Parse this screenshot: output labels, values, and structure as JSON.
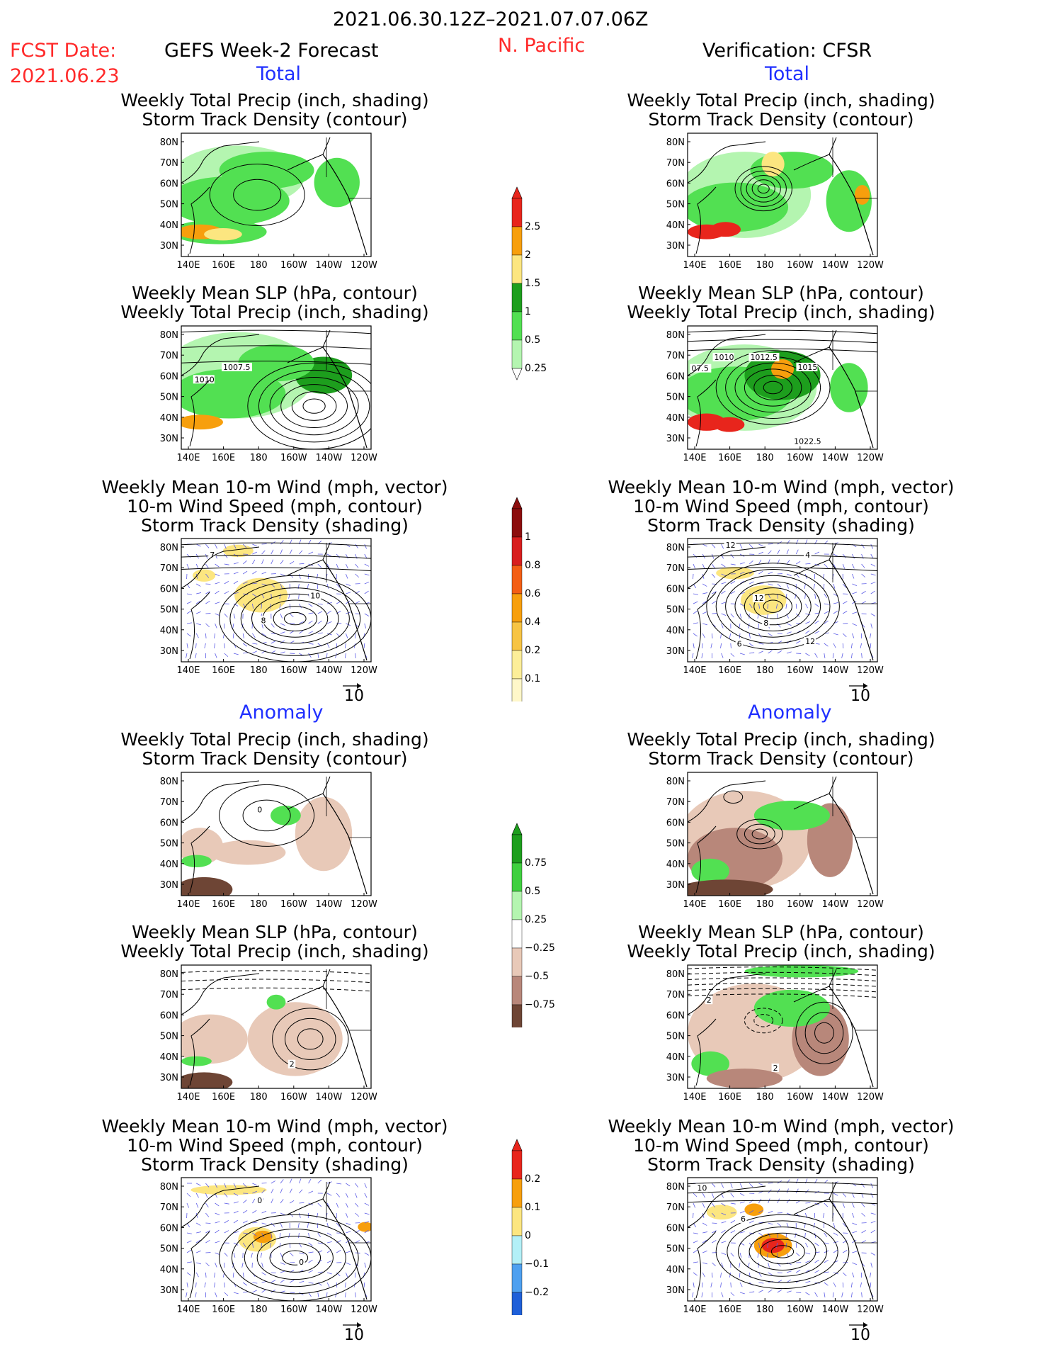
{
  "header": {
    "valid_period": "2021.06.30.12Z–2021.07.07.06Z",
    "fcst_label": "FCST Date:",
    "fcst_date": "2021.06.23",
    "left_title": "GEFS Week-2 Forecast",
    "region": "N. Pacific",
    "right_title": "Verification: CFSR"
  },
  "sections": {
    "total": "Total",
    "anomaly": "Anomaly"
  },
  "panel_titles": {
    "precip_storm": [
      "Weekly Total Precip (inch, shading)",
      "Storm Track Density (contour)"
    ],
    "slp_precip": [
      "Weekly Mean SLP (hPa, contour)",
      "Weekly Total Precip (inch, shading)"
    ],
    "wind_storm": [
      "Weekly Mean 10-m Wind (mph, vector)",
      "10-m Wind Speed (mph, contour)",
      "Storm Track Density (shading)"
    ]
  },
  "axes": {
    "lat_ticks": [
      "80N",
      "70N",
      "60N",
      "50N",
      "40N",
      "30N"
    ],
    "lon_ticks": [
      "140E",
      "160E",
      "180",
      "160W",
      "140W",
      "120W"
    ]
  },
  "vector_reference": "10",
  "colorbars": {
    "precip_total": {
      "labels": [
        "2.5",
        "2",
        "1.5",
        "1",
        "0.5",
        "0.25"
      ],
      "colors": [
        "#e8251c",
        "#f79f0d",
        "#fce680",
        "#1d9e1d",
        "#52e052",
        "#b4f5b0"
      ]
    },
    "storm_total": {
      "labels": [
        "1",
        "0.8",
        "0.6",
        "0.4",
        "0.2",
        "0.1"
      ],
      "colors": [
        "#8c0d0d",
        "#d81e1e",
        "#f35e14",
        "#f79f0d",
        "#f7c444",
        "#fcee99",
        "#fff7c9"
      ]
    },
    "precip_anom": {
      "labels": [
        "0.75",
        "0.5",
        "0.25",
        "−0.25",
        "−0.5",
        "−0.75"
      ],
      "colors": [
        "#1d9e1d",
        "#3fd03f",
        "#b4f5b0",
        "#ffffff",
        "#e8c9b8",
        "#b8877a",
        "#6e4535"
      ]
    },
    "storm_anom": {
      "labels": [
        "0.2",
        "0.1",
        "0",
        "−0.1",
        "−0.2"
      ],
      "colors": [
        "#e8251c",
        "#f79f0d",
        "#fce680",
        "#b3f0f7",
        "#4ea0f0",
        "#1f5fd8"
      ]
    }
  },
  "contour_labels": {
    "slp_fcst_total": [
      "1007.5",
      "1010"
    ],
    "slp_ver_total": [
      "07.5",
      "1010",
      "1012.5",
      "1015",
      "1022.5"
    ],
    "wind_fcst_total": [
      "7",
      "10",
      "8"
    ],
    "wind_ver_total": [
      "12",
      "4",
      "12",
      "8",
      "12",
      "6"
    ],
    "anom_fcst": [
      "0"
    ],
    "slp_anom_fcst": [
      "2"
    ],
    "slp_anom_ver": [
      "2",
      "2"
    ],
    "wind_anom_fcst": [
      "0",
      "0"
    ],
    "wind_anom_ver": [
      "10",
      "6"
    ]
  }
}
